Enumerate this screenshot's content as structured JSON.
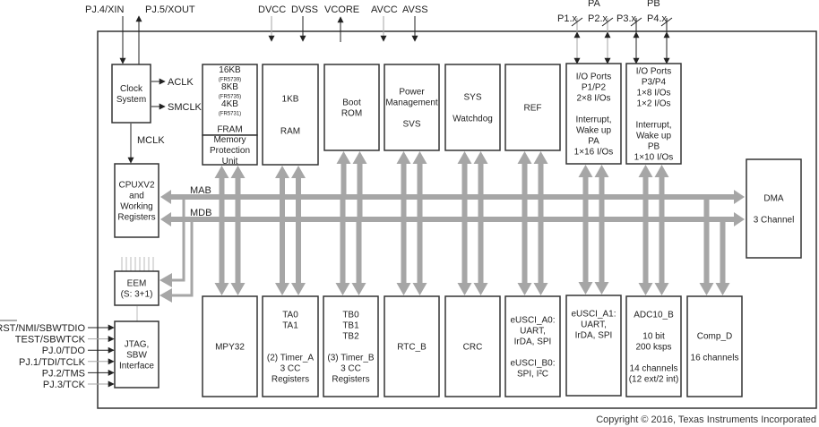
{
  "top_pins": {
    "xin": "PJ.4/XIN",
    "xout": "PJ.5/XOUT",
    "dvcc": "DVCC",
    "dvss": "DVSS",
    "vcore": "VCORE",
    "avcc": "AVCC",
    "avss": "AVSS",
    "pa": "PA",
    "pb": "PB",
    "p1": "P1.x",
    "p2": "P2.x",
    "p3": "P3.x",
    "p4": "P4.x"
  },
  "clock_outputs": {
    "aclk": "ACLK",
    "smclk": "SMCLK",
    "mclk": "MCLK"
  },
  "bus_labels": {
    "mab": "MAB",
    "mdb": "MDB"
  },
  "jtag_pins": [
    "RST/NMI/SBWTDIO",
    "TEST/SBWTCK",
    "PJ.0/TDO",
    "PJ.1/TDI/TCLK",
    "PJ.2/TMS",
    "PJ.3/TCK"
  ],
  "blocks": [
    {
      "id": "clock",
      "lines": [
        "Clock",
        "System"
      ]
    },
    {
      "id": "cpu",
      "lines": [
        "CPUXV2",
        "and",
        "Working",
        "Registers"
      ]
    },
    {
      "id": "eem",
      "lines": [
        "EEM",
        "(S: 3+1)"
      ]
    },
    {
      "id": "jtag",
      "lines": [
        "JTAG,",
        "SBW",
        "Interface"
      ]
    },
    {
      "id": "fram",
      "lines": [
        "16KB",
        "(FR5739)",
        "8KB",
        "(FR5735)",
        "4KB",
        "(FR5731)",
        "",
        "FRAM"
      ]
    },
    {
      "id": "mpu",
      "lines": [
        "Memory",
        "Protection",
        "Unit"
      ]
    },
    {
      "id": "ram",
      "lines": [
        "1KB",
        "",
        "",
        "RAM"
      ]
    },
    {
      "id": "bootrom",
      "lines": [
        "Boot",
        "ROM"
      ]
    },
    {
      "id": "power",
      "lines": [
        "Power",
        "Management",
        "",
        "SVS"
      ]
    },
    {
      "id": "sys",
      "lines": [
        "SYS",
        "",
        "Watchdog"
      ]
    },
    {
      "id": "ref",
      "lines": [
        "REF"
      ]
    },
    {
      "id": "io12",
      "lines": [
        "I/O Ports",
        "P1/P2",
        "2×8 I/Os",
        "",
        "Interrupt,",
        "Wake up",
        "PA",
        "1×16 I/Os"
      ]
    },
    {
      "id": "io34",
      "lines": [
        "I/O Ports",
        "P3/P4",
        "1×8 I/Os",
        "1×2 I/Os",
        "",
        "Interrupt,",
        "Wake up",
        "PB",
        "1×10 I/Os"
      ]
    },
    {
      "id": "dma",
      "lines": [
        "DMA",
        "",
        "3 Channel"
      ]
    },
    {
      "id": "mpy",
      "lines": [
        "MPY32"
      ]
    },
    {
      "id": "timera",
      "lines": [
        "TA0",
        "TA1",
        "",
        "",
        "(2) Timer_A",
        "3 CC",
        "Registers"
      ]
    },
    {
      "id": "timerb",
      "lines": [
        "TB0",
        "TB1",
        "TB2",
        "",
        "(3) Timer_B",
        "3 CC",
        "Registers"
      ]
    },
    {
      "id": "rtc",
      "lines": [
        "RTC_B"
      ]
    },
    {
      "id": "crc",
      "lines": [
        "CRC"
      ]
    },
    {
      "id": "usci_a0",
      "lines": [
        "eUSCI_A0:",
        "UART,",
        "IrDA, SPI",
        "",
        "eUSCI_B0:",
        "SPI, I²C"
      ]
    },
    {
      "id": "usci_a1",
      "lines": [
        "eUSCI_A1:",
        "UART,",
        "IrDA, SPI",
        "",
        "",
        "",
        ""
      ]
    },
    {
      "id": "adc",
      "lines": [
        "ADC10_B",
        "",
        "10 bit",
        "200 ksps",
        "",
        "14 channels",
        "(12 ext/2 int)"
      ]
    },
    {
      "id": "comp",
      "lines": [
        "Comp_D",
        "",
        "16 channels"
      ]
    }
  ],
  "copyright": "Copyright © 2016, Texas Instruments Incorporated"
}
